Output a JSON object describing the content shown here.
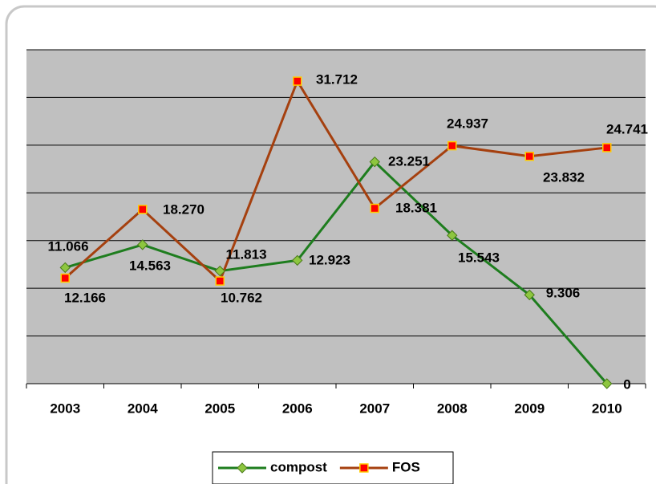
{
  "chart_data": {
    "type": "line",
    "categories": [
      "2003",
      "2004",
      "2005",
      "2006",
      "2007",
      "2008",
      "2009",
      "2010"
    ],
    "series": [
      {
        "name": "compost",
        "color": "#1e7d1e",
        "values": [
          12.166,
          14.563,
          11.813,
          12.923,
          23.251,
          15.543,
          9.306,
          0
        ],
        "value_labels": [
          "12.166",
          "14.563",
          "11.813",
          "12.923",
          "23.251",
          "15.543",
          "9.306",
          "0"
        ]
      },
      {
        "name": "FOS",
        "color": "#a5400f",
        "values": [
          11.066,
          18.27,
          10.762,
          31.712,
          18.381,
          24.937,
          23.832,
          24.741
        ],
        "value_labels": [
          "11.066",
          "18.270",
          "10.762",
          "31.712",
          "18.381",
          "24.937",
          "23.832",
          "24.741"
        ]
      }
    ],
    "ylim": [
      0,
      35
    ],
    "yticks": [
      0,
      5,
      10,
      15,
      20,
      25,
      30,
      35
    ],
    "grid": true,
    "legend": "bottom"
  }
}
